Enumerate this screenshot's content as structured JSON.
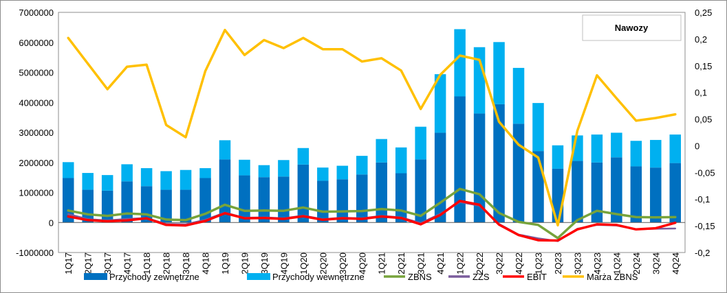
{
  "chart_data": {
    "type": "bar",
    "title": "Nawozy",
    "legend_position": "bottom",
    "grid": false,
    "categories": [
      "1Q17",
      "2Q17",
      "3Q17",
      "4Q17",
      "1Q18",
      "2Q18",
      "3Q18",
      "4Q18",
      "1Q19",
      "2Q19",
      "3Q19",
      "4Q19",
      "1Q20",
      "2Q20",
      "3Q20",
      "4Q20",
      "1Q21",
      "2Q21",
      "3Q21",
      "4Q21",
      "1Q22",
      "2Q22",
      "3Q22",
      "4Q22",
      "1Q23",
      "2Q23",
      "3Q23",
      "4Q23",
      "1Q24",
      "2Q24",
      "3Q24",
      "4Q24"
    ],
    "left_axis": {
      "min": -1000000,
      "max": 7000000,
      "step": 1000000,
      "tick_labels": [
        "-1000000",
        "0",
        "1000000",
        "2000000",
        "3000000",
        "4000000",
        "5000000",
        "6000000",
        "7000000"
      ]
    },
    "right_axis": {
      "min": -0.2,
      "max": 0.25,
      "step": 0.05,
      "tick_labels": [
        "-0,2",
        "-0,15",
        "-0,1",
        "-0,05",
        "0",
        "0,05",
        "0,1",
        "0,15",
        "0,2",
        "0,25"
      ]
    },
    "colors": {
      "external": "#0070c0",
      "internal": "#00b0f0",
      "zbns": "#77a33b",
      "zzs": "#7a5c9c",
      "ebit": "#ff0000",
      "margin": "#ffc000"
    },
    "series": [
      {
        "name": "Przychody zewnętrzne",
        "type": "bar-stacked",
        "axis": "left",
        "values": [
          1480000,
          1090000,
          1060000,
          1370000,
          1210000,
          1090000,
          1090000,
          1480000,
          2100000,
          1570000,
          1510000,
          1530000,
          1930000,
          1390000,
          1440000,
          1600000,
          2000000,
          1640000,
          2100000,
          2990000,
          4200000,
          3630000,
          3940000,
          3290000,
          2380000,
          1790000,
          2050000,
          2000000,
          2170000,
          1870000,
          1830000,
          1980000
        ]
      },
      {
        "name": "Przychody wewnętrzne",
        "type": "bar-stacked",
        "axis": "left",
        "values": [
          530000,
          560000,
          520000,
          570000,
          600000,
          620000,
          660000,
          330000,
          640000,
          520000,
          400000,
          550000,
          550000,
          440000,
          450000,
          620000,
          780000,
          860000,
          1090000,
          1950000,
          2240000,
          2210000,
          2070000,
          1860000,
          1600000,
          780000,
          850000,
          930000,
          820000,
          850000,
          920000,
          950000
        ]
      },
      {
        "name": "ZBNS",
        "type": "line",
        "axis": "left",
        "values": [
          400000,
          270000,
          220000,
          300000,
          270000,
          100000,
          80000,
          290000,
          590000,
          390000,
          400000,
          390000,
          500000,
          360000,
          370000,
          380000,
          450000,
          400000,
          220000,
          660000,
          1120000,
          940000,
          320000,
          20000,
          -80000,
          -520000,
          80000,
          390000,
          280000,
          180000,
          170000,
          180000
        ]
      },
      {
        "name": "ZZS",
        "type": "line",
        "axis": "left",
        "values": [
          280000,
          110000,
          70000,
          120000,
          150000,
          -50000,
          -60000,
          90000,
          330000,
          160000,
          170000,
          140000,
          230000,
          110000,
          160000,
          140000,
          220000,
          170000,
          -20000,
          290000,
          680000,
          560000,
          -50000,
          -400000,
          -530000,
          -620000,
          -210000,
          -80000,
          -100000,
          -230000,
          -210000,
          -200000
        ]
      },
      {
        "name": "EBIT",
        "type": "line",
        "axis": "left",
        "values": [
          200000,
          80000,
          40000,
          70000,
          140000,
          -80000,
          -100000,
          50000,
          310000,
          140000,
          150000,
          120000,
          210000,
          90000,
          140000,
          120000,
          200000,
          150000,
          -60000,
          250000,
          720000,
          590000,
          -70000,
          -420000,
          -590000,
          -600000,
          -230000,
          -60000,
          -80000,
          -230000,
          -190000,
          -10000
        ]
      },
      {
        "name": "Marża ZBNS",
        "type": "line",
        "axis": "right",
        "values": [
          0.202,
          0.154,
          0.106,
          0.148,
          0.152,
          0.039,
          0.016,
          0.14,
          0.217,
          0.17,
          0.198,
          0.183,
          0.202,
          0.181,
          0.181,
          0.158,
          0.164,
          0.141,
          0.069,
          0.133,
          0.169,
          0.161,
          0.045,
          0.002,
          -0.022,
          -0.149,
          0.028,
          0.132,
          0.089,
          0.047,
          0.052,
          0.059
        ]
      }
    ]
  }
}
